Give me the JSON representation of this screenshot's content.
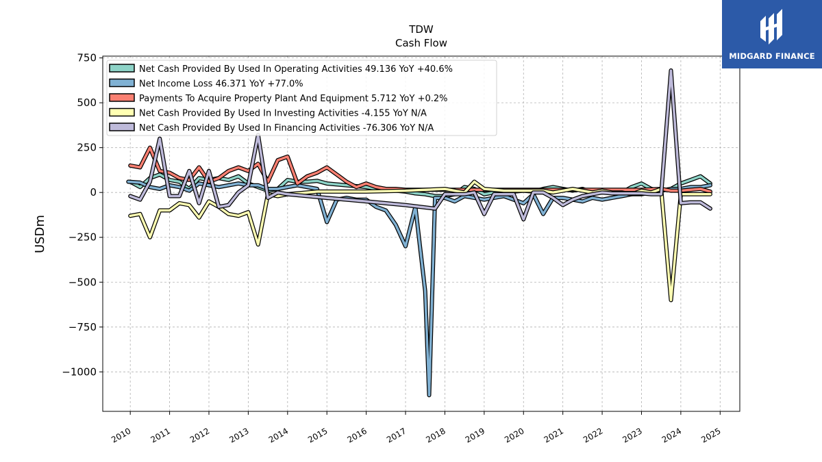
{
  "chart_data": {
    "type": "line",
    "title": "TDW",
    "subtitle": "Cash Flow",
    "ylabel": "USDm",
    "xlabel": "",
    "xlim": [
      2009.3,
      2025.5
    ],
    "ylim": [
      -1220,
      760
    ],
    "yticks": [
      750,
      500,
      250,
      0,
      -250,
      -500,
      -750,
      -1000
    ],
    "ytick_labels": [
      "750",
      "500",
      "250",
      "0",
      "−250",
      "−500",
      "−750",
      "−1000"
    ],
    "xticks": [
      2010,
      2011,
      2012,
      2013,
      2014,
      2015,
      2016,
      2017,
      2018,
      2019,
      2020,
      2021,
      2022,
      2023,
      2024,
      2025
    ],
    "xtick_labels": [
      "2010",
      "2011",
      "2012",
      "2013",
      "2014",
      "2015",
      "2016",
      "2017",
      "2018",
      "2019",
      "2020",
      "2021",
      "2022",
      "2023",
      "2024",
      "2025"
    ],
    "grid": true,
    "legend_position": "top-left",
    "series": [
      {
        "name": "Net Cash Provided By Used In Operating Activities  49.136 YoY +40.6%",
        "color": "#8dd3c7",
        "x": [
          2010.0,
          2010.25,
          2010.5,
          2010.75,
          2011.0,
          2011.25,
          2011.5,
          2011.75,
          2012.0,
          2012.25,
          2012.5,
          2012.75,
          2013.0,
          2013.25,
          2013.5,
          2013.75,
          2014.0,
          2014.25,
          2014.5,
          2014.75,
          2015.0,
          2016.0,
          2016.25,
          2016.5,
          2016.75,
          2017.0,
          2017.25,
          2017.5,
          2017.75,
          2018.0,
          2018.25,
          2018.5,
          2018.75,
          2019.0,
          2019.25,
          2019.5,
          2019.75,
          2020.0,
          2020.25,
          2020.5,
          2020.75,
          2021.0,
          2021.25,
          2021.5,
          2021.75,
          2022.0,
          2022.25,
          2022.5,
          2022.75,
          2023.0,
          2023.25,
          2023.5,
          2023.75,
          2024.0,
          2024.25,
          2024.5,
          2024.75
        ],
        "values": [
          60,
          30,
          80,
          100,
          70,
          60,
          20,
          80,
          70,
          80,
          70,
          90,
          50,
          30,
          10,
          20,
          70,
          60,
          60,
          65,
          50,
          30,
          20,
          15,
          10,
          5,
          -5,
          -10,
          -20,
          -20,
          -10,
          30,
          20,
          -10,
          0,
          10,
          5,
          10,
          5,
          20,
          30,
          20,
          10,
          20,
          0,
          10,
          5,
          0,
          30,
          50,
          20,
          10,
          20,
          50,
          70,
          90,
          50
        ]
      },
      {
        "name": "Net Income Loss  46.371 YoY +77.0%",
        "color": "#80b1d3",
        "x": [
          2009.95,
          2010.25,
          2010.5,
          2010.75,
          2011.0,
          2011.25,
          2011.5,
          2011.75,
          2012.0,
          2012.25,
          2012.5,
          2012.75,
          2013.0,
          2013.25,
          2013.5,
          2013.75,
          2014.0,
          2014.25,
          2014.5,
          2014.75,
          2015.0,
          2015.25,
          2015.5,
          2015.75,
          2016.0,
          2016.25,
          2016.5,
          2016.75,
          2017.0,
          2017.25,
          2017.5,
          2017.6,
          2017.75,
          2018.0,
          2018.25,
          2018.5,
          2018.75,
          2019.0,
          2019.25,
          2019.5,
          2019.75,
          2020.0,
          2020.25,
          2020.5,
          2020.75,
          2021.0,
          2021.25,
          2021.5,
          2021.75,
          2022.0,
          2022.25,
          2022.5,
          2022.75,
          2023.0,
          2023.25,
          2023.5,
          2023.75,
          2024.0,
          2024.25,
          2024.5,
          2024.75
        ],
        "values": [
          60,
          55,
          30,
          20,
          40,
          30,
          10,
          50,
          40,
          30,
          40,
          50,
          40,
          40,
          20,
          20,
          30,
          40,
          30,
          20,
          -165,
          -40,
          -30,
          -40,
          -40,
          -80,
          -100,
          -180,
          -300,
          -80,
          -550,
          -1130,
          -30,
          -30,
          -50,
          -20,
          -30,
          -40,
          -30,
          -20,
          -40,
          -60,
          -10,
          -120,
          -30,
          -30,
          -40,
          -50,
          -30,
          -40,
          -30,
          -20,
          -10,
          -10,
          0,
          10,
          20,
          20,
          30,
          30,
          40
        ]
      },
      {
        "name": "Payments To Acquire Property Plant And Equipment  5.712 YoY +0.2%",
        "color": "#fb8072",
        "x": [
          2010.0,
          2010.25,
          2010.5,
          2010.75,
          2011.0,
          2011.25,
          2011.5,
          2011.75,
          2012.0,
          2012.25,
          2012.5,
          2012.75,
          2013.0,
          2013.25,
          2013.5,
          2013.75,
          2014.0,
          2014.25,
          2014.5,
          2014.75,
          2015.0,
          2015.25,
          2015.5,
          2015.75,
          2016.0,
          2016.25,
          2016.5,
          2016.75,
          2017.0,
          2018.0,
          2019.0,
          2020.0,
          2021.0,
          2022.0,
          2023.0,
          2023.5,
          2023.75,
          2024.0,
          2024.25,
          2024.5,
          2024.75
        ],
        "values": [
          150,
          140,
          250,
          120,
          110,
          80,
          70,
          140,
          60,
          80,
          120,
          140,
          120,
          160,
          60,
          180,
          200,
          50,
          90,
          110,
          140,
          100,
          60,
          30,
          50,
          30,
          20,
          20,
          15,
          15,
          15,
          15,
          15,
          15,
          15,
          20,
          10,
          10,
          15,
          20,
          5
        ]
      },
      {
        "name": "Net Cash Provided By Used In Investing Activities  -4.155 YoY N/A",
        "color": "#ffffb3",
        "x": [
          2010.0,
          2010.25,
          2010.5,
          2010.75,
          2011.0,
          2011.25,
          2011.5,
          2011.75,
          2012.0,
          2012.25,
          2012.5,
          2012.75,
          2013.0,
          2013.25,
          2013.5,
          2013.75,
          2014.0,
          2014.25,
          2014.5,
          2014.75,
          2015.0,
          2016.0,
          2017.0,
          2018.0,
          2018.25,
          2018.5,
          2018.75,
          2019.0,
          2019.25,
          2019.5,
          2019.75,
          2020.0,
          2020.25,
          2020.5,
          2020.75,
          2021.0,
          2021.25,
          2021.5,
          2021.75,
          2022.0,
          2022.25,
          2022.5,
          2022.75,
          2023.0,
          2023.25,
          2023.5,
          2023.75,
          2024.0,
          2024.25,
          2024.5,
          2024.75
        ],
        "values": [
          -130,
          -120,
          -250,
          -100,
          -100,
          -60,
          -70,
          -140,
          -50,
          -80,
          -120,
          -130,
          -110,
          -290,
          -10,
          -20,
          -10,
          -5,
          0,
          5,
          5,
          5,
          10,
          20,
          10,
          0,
          60,
          20,
          15,
          10,
          10,
          10,
          10,
          10,
          0,
          10,
          20,
          10,
          0,
          10,
          0,
          0,
          -10,
          10,
          0,
          20,
          -600,
          -10,
          -10,
          -10,
          -10
        ]
      },
      {
        "name": "Net Cash Provided By Used In Financing Activities  -76.306 YoY N/A",
        "color": "#bebada",
        "x": [
          2010.0,
          2010.25,
          2010.5,
          2010.75,
          2011.0,
          2011.25,
          2011.5,
          2011.75,
          2012.0,
          2012.25,
          2012.5,
          2012.75,
          2013.0,
          2013.25,
          2013.5,
          2013.75,
          2014.0,
          2015.0,
          2016.0,
          2017.0,
          2017.75,
          2018.0,
          2018.25,
          2018.5,
          2018.75,
          2019.0,
          2019.25,
          2019.5,
          2019.75,
          2020.0,
          2020.25,
          2020.5,
          2020.75,
          2021.0,
          2021.25,
          2021.5,
          2021.75,
          2022.0,
          2022.25,
          2022.5,
          2022.75,
          2023.0,
          2023.25,
          2023.5,
          2023.75,
          2024.0,
          2024.25,
          2024.5,
          2024.75
        ],
        "values": [
          -20,
          -40,
          60,
          300,
          -20,
          -20,
          120,
          -60,
          120,
          -80,
          -70,
          0,
          40,
          320,
          -30,
          0,
          -10,
          -30,
          -50,
          -70,
          -90,
          -10,
          -10,
          -10,
          0,
          -120,
          -10,
          -10,
          -10,
          -150,
          0,
          0,
          -30,
          -70,
          -40,
          -20,
          -10,
          0,
          -5,
          -5,
          -5,
          -5,
          -10,
          -10,
          680,
          -60,
          -55,
          -55,
          -90
        ]
      }
    ]
  },
  "logo": {
    "brand_text": "MIDGARD FINANCE",
    "background_color": "#2c5aa8"
  }
}
